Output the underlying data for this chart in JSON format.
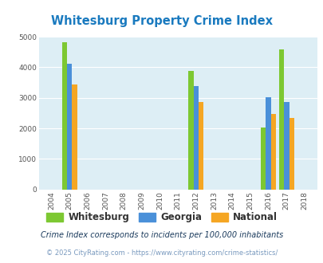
{
  "title": "Whitesburg Property Crime Index",
  "title_color": "#1a7abf",
  "years": [
    2004,
    2005,
    2006,
    2007,
    2008,
    2009,
    2010,
    2011,
    2012,
    2013,
    2014,
    2015,
    2016,
    2017,
    2018
  ],
  "whitesburg": {
    "2005": 4820,
    "2012": 3870,
    "2016": 2020,
    "2017": 4580
  },
  "georgia": {
    "2005": 4120,
    "2012": 3380,
    "2016": 3010,
    "2017": 2860
  },
  "national": {
    "2005": 3430,
    "2012": 2870,
    "2016": 2460,
    "2017": 2340
  },
  "color_whitesburg": "#7dc832",
  "color_georgia": "#4a90d9",
  "color_national": "#f5a623",
  "ylim": [
    0,
    5000
  ],
  "yticks": [
    0,
    1000,
    2000,
    3000,
    4000,
    5000
  ],
  "bg_color": "#ddeef5",
  "bar_width": 0.28,
  "legend_labels": [
    "Whitesburg",
    "Georgia",
    "National"
  ],
  "footnote1": "Crime Index corresponds to incidents per 100,000 inhabitants",
  "footnote2": "© 2025 CityRating.com - https://www.cityrating.com/crime-statistics/",
  "footnote1_color": "#1a3a5c",
  "footnote2_color": "#7a9abf"
}
